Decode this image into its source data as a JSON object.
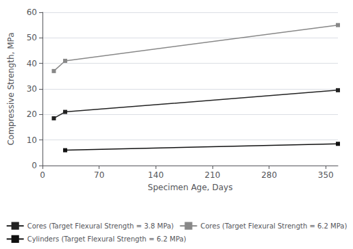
{
  "chart_data": {
    "type": "line",
    "xlabel": "Specimen Age, Days",
    "ylabel": "Compressive Strength, MPa",
    "series": [
      {
        "name": "Cores (Target Flexural Strength = 3.8 MPa)",
        "color": "#222222",
        "marker": "square",
        "line_style": "solid",
        "x": [
          14,
          28,
          365
        ],
        "values": [
          18.5,
          21.0,
          29.5
        ]
      },
      {
        "name": "Cores (Target Flexural Strength = 6.2 MPa)",
        "color": "#888888",
        "marker": "square",
        "line_style": "solid",
        "x": [
          14,
          28,
          365
        ],
        "values": [
          37.0,
          41.0,
          55.0
        ]
      },
      {
        "name": "Cylinders (Target Flexural Strength = 6.2 MPa)",
        "color": "#111111",
        "marker": "square",
        "line_style": "solid",
        "x": [
          28,
          365
        ],
        "values": [
          6.0,
          8.5
        ]
      }
    ],
    "xlim": [
      0,
      365
    ],
    "xticks": [
      0,
      70,
      140,
      210,
      280,
      350
    ],
    "ylim": [
      0,
      60
    ],
    "yticks": [
      0,
      10,
      20,
      30,
      40,
      50,
      60
    ],
    "grid": true,
    "legend": "bottom"
  }
}
